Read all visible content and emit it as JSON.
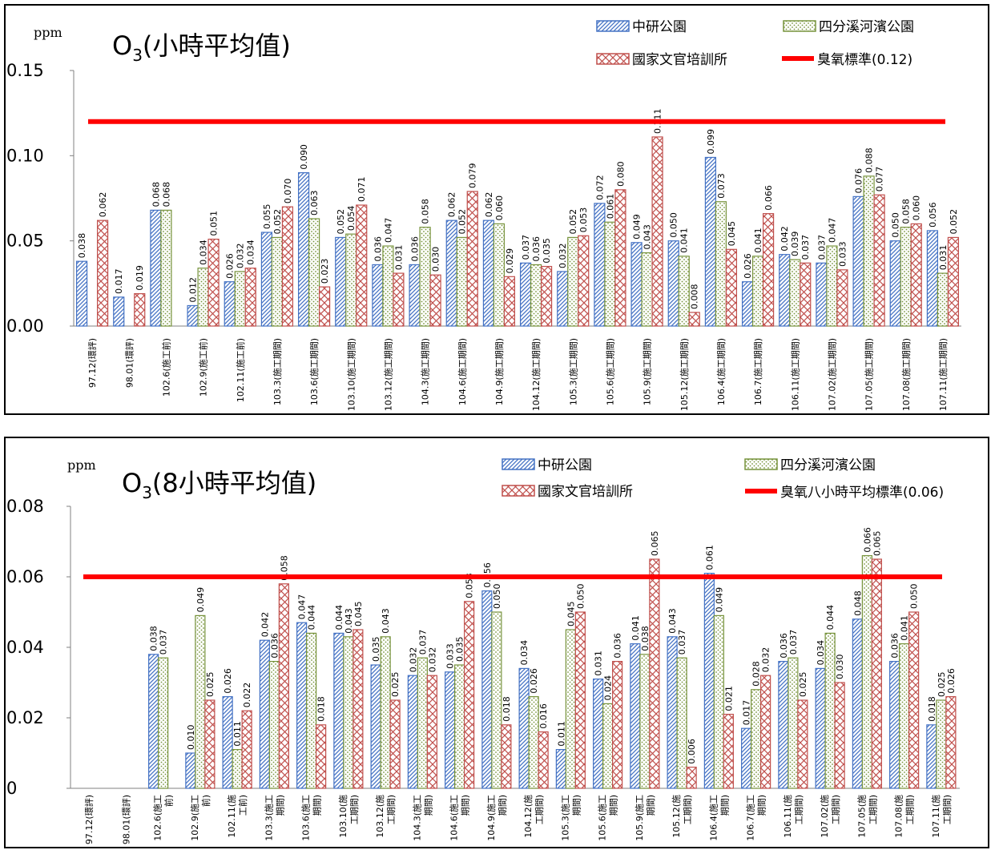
{
  "chart_data": [
    {
      "type": "bar",
      "title": "O3(小時平均值)",
      "unit_label": "ppm",
      "ylim": [
        0,
        0.15
      ],
      "yticks": [
        "0.00",
        "0.05",
        "0.10",
        "0.15"
      ],
      "categories": [
        "97.12(環評)",
        "98.01(環評)",
        "102.6(施工前)",
        "102.9(施工前)",
        "102.11(施工前)",
        "103.3(施工期間)",
        "103.6(施工期間)",
        "103.10(施工期間)",
        "103.12(施工期間)",
        "104.3(施工期間)",
        "104.6(施工期間)",
        "104.9(施工期間)",
        "104.12(施工期間)",
        "105.3(施工期間)",
        "105.6(施工期間)",
        "105.9(施工期間)",
        "105.12(施工期間)",
        "106.4(施工期間)",
        "106.7(施工期間)",
        "106.11(施工期間)",
        "107.02(施工期間)",
        "107.05(施工期間)",
        "107.08(施工期間)",
        "107.11(施工期間)"
      ],
      "series": [
        {
          "name": "中研公園",
          "color": "#4472C4",
          "pattern": "diagonal",
          "values": [
            0.038,
            0.017,
            0.068,
            0.012,
            0.026,
            0.055,
            0.09,
            0.052,
            0.036,
            0.036,
            0.062,
            0.062,
            0.037,
            0.032,
            0.072,
            0.049,
            0.05,
            0.099,
            0.026,
            0.042,
            0.037,
            0.076,
            0.05,
            0.056
          ]
        },
        {
          "name": "四分溪河濱公園",
          "color": "#77933C",
          "pattern": "dots",
          "values": [
            null,
            null,
            0.068,
            0.034,
            0.032,
            0.052,
            0.063,
            0.054,
            0.047,
            0.058,
            0.052,
            0.06,
            0.036,
            0.052,
            0.061,
            0.043,
            0.041,
            0.073,
            0.041,
            0.039,
            0.047,
            0.088,
            0.058,
            0.031
          ]
        },
        {
          "name": "國家文官培訓所",
          "color": "#C0504D",
          "pattern": "cross",
          "values": [
            0.062,
            0.019,
            null,
            0.051,
            0.034,
            0.07,
            0.023,
            0.071,
            0.031,
            0.03,
            0.079,
            0.029,
            0.035,
            0.053,
            0.08,
            0.111,
            0.008,
            0.045,
            0.066,
            0.037,
            0.033,
            0.077,
            0.06,
            0.052
          ]
        }
      ],
      "standard": {
        "name": "臭氧標準(0.12)",
        "value": 0.12,
        "color": "#FF0000"
      }
    },
    {
      "type": "bar",
      "title": "O3(8小時平均值)",
      "unit_label": "ppm",
      "ylim": [
        0,
        0.08
      ],
      "yticks": [
        "0",
        "0.02",
        "0.04",
        "0.06",
        "0.08"
      ],
      "categories": [
        [
          "97.12(環評)"
        ],
        [
          "98.01(環評)"
        ],
        [
          "102.6(施工",
          "前)"
        ],
        [
          "102.9(施工",
          "前)"
        ],
        [
          "102.11(施",
          "工前)"
        ],
        [
          "103.3(施工",
          "期間)"
        ],
        [
          "103.6(施工",
          "期間)"
        ],
        [
          "103.10(施",
          "工期間)"
        ],
        [
          "103.12(施",
          "工期間)"
        ],
        [
          "104.3(施工",
          "期間)"
        ],
        [
          "104.6(施工",
          "期間)"
        ],
        [
          "104.9(施工",
          "期間)"
        ],
        [
          "104.12(施",
          "工期間)"
        ],
        [
          "105.3(施工",
          "期間)"
        ],
        [
          "105.6(施工",
          "期間)"
        ],
        [
          "105.9(施工",
          "期間)"
        ],
        [
          "105.12(施",
          "工期間)"
        ],
        [
          "106.4(施工",
          "期間)"
        ],
        [
          "106.7(施工",
          "期間)"
        ],
        [
          "106.11(施",
          "工期間)"
        ],
        [
          "107.02(施",
          "工期間)"
        ],
        [
          "107.05(施",
          "工期間)"
        ],
        [
          "107.08(施",
          "工期間)"
        ],
        [
          "107.11(施",
          "工期間)"
        ]
      ],
      "series": [
        {
          "name": "中研公園",
          "color": "#4472C4",
          "pattern": "diagonal",
          "values": [
            null,
            null,
            0.038,
            0.01,
            0.026,
            0.042,
            0.047,
            0.044,
            0.035,
            0.032,
            0.033,
            0.056,
            0.034,
            0.011,
            0.031,
            0.041,
            0.043,
            0.061,
            0.017,
            0.036,
            0.034,
            0.048,
            0.036,
            0.018
          ]
        },
        {
          "name": "四分溪河濱公園",
          "color": "#77933C",
          "pattern": "dots",
          "values": [
            null,
            null,
            0.037,
            0.049,
            0.011,
            0.036,
            0.044,
            0.043,
            0.043,
            0.037,
            0.035,
            0.05,
            0.026,
            0.045,
            0.024,
            0.038,
            0.037,
            0.049,
            0.028,
            0.037,
            0.044,
            0.066,
            0.041,
            0.025
          ]
        },
        {
          "name": "國家文官培訓所",
          "color": "#C0504D",
          "pattern": "cross",
          "values": [
            null,
            null,
            null,
            0.025,
            0.022,
            0.058,
            0.018,
            0.045,
            0.025,
            0.032,
            0.053,
            0.018,
            0.016,
            0.05,
            0.036,
            0.065,
            0.006,
            0.021,
            0.032,
            0.025,
            0.03,
            0.065,
            0.05,
            0.026
          ]
        }
      ],
      "standard": {
        "name": "臭氧八小時平均標準(0.06)",
        "value": 0.06,
        "color": "#FF0000"
      }
    }
  ]
}
